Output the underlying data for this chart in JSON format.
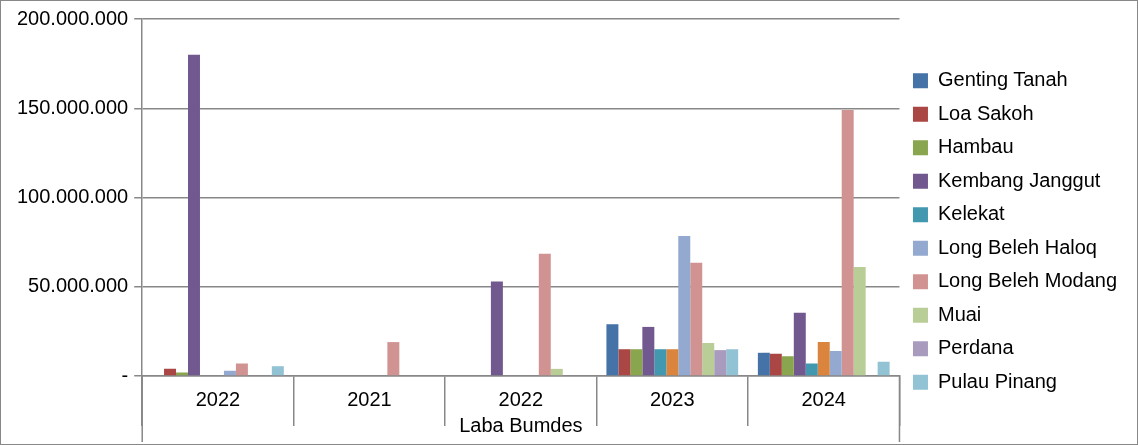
{
  "chart_data": {
    "type": "bar",
    "xlabel": "Laba Bumdes",
    "categories": [
      "2022",
      "2021",
      "2022",
      "2023",
      "2024"
    ],
    "series": [
      {
        "name": "Genting Tanah",
        "color": "#4572a7",
        "values": [
          0,
          0,
          0,
          29000000,
          13000000
        ]
      },
      {
        "name": "Loa Sakoh",
        "color": "#aa4643",
        "values": [
          4000000,
          0,
          0,
          15000000,
          12500000
        ]
      },
      {
        "name": "Hambau",
        "color": "#89a54e",
        "values": [
          2000000,
          0,
          0,
          15000000,
          11000000
        ]
      },
      {
        "name": "Kembang Janggut",
        "color": "#71588f",
        "values": [
          180000000,
          0,
          53000000,
          27500000,
          35500000
        ]
      },
      {
        "name": "Kelekat",
        "color": "#4198af",
        "values": [
          0,
          0,
          0,
          15000000,
          7000000
        ]
      },
      {
        "color": "#db843d",
        "values": [
          0,
          0,
          0,
          15000000,
          19000000
        ]
      },
      {
        "name": "Long Beleh Haloq",
        "color": "#93a9cf",
        "values": [
          3000000,
          0,
          0,
          78500000,
          14000000
        ]
      },
      {
        "name": "Long Beleh Modang",
        "color": "#d19392",
        "values": [
          7000000,
          19000000,
          68500000,
          63500000,
          149000000
        ]
      },
      {
        "name": "Muai",
        "color": "#b9cd96",
        "values": [
          0,
          0,
          4000000,
          18500000,
          61000000
        ]
      },
      {
        "name": "Perdana",
        "color": "#a99bbd",
        "values": [
          0,
          0,
          0,
          14500000,
          0
        ]
      },
      {
        "name": "Pulau Pinang",
        "color": "#92c3d4",
        "values": [
          5500000,
          0,
          0,
          15000000,
          8000000
        ]
      }
    ],
    "ylim": [
      0,
      200000000
    ],
    "yticks": [
      {
        "value": 0,
        "label": "-"
      },
      {
        "value": 50000000,
        "label": "50.000.000"
      },
      {
        "value": 100000000,
        "label": "100.000.000"
      },
      {
        "value": 150000000,
        "label": "150.000.000"
      },
      {
        "value": 200000000,
        "label": "200.000.000"
      }
    ],
    "grid": "y",
    "legend": "right"
  }
}
